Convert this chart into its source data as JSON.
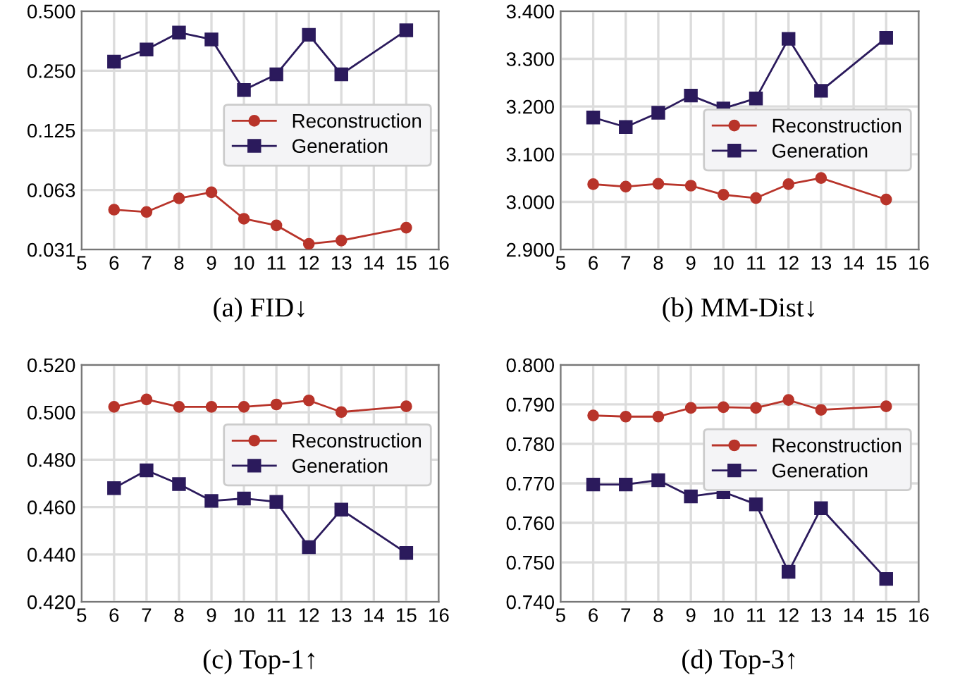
{
  "chart_data": [
    {
      "type": "line",
      "title": "(a) FID↓",
      "log": "y",
      "x": [
        6,
        7,
        8,
        9,
        10,
        11,
        12,
        13,
        15
      ],
      "series": [
        {
          "name": "Reconstruction",
          "color": "#b8342a",
          "marker": "circle",
          "values": [
            0.0497,
            0.0484,
            0.0567,
            0.0608,
            0.0447,
            0.0414,
            0.0334,
            0.0347,
            0.0403
          ]
        },
        {
          "name": "Generation",
          "color": "#2b1a5c",
          "marker": "square",
          "values": [
            0.278,
            0.32,
            0.39,
            0.36,
            0.2,
            0.24,
            0.38,
            0.24,
            0.4
          ]
        }
      ],
      "xlim": [
        5,
        16
      ],
      "xticks": [
        5,
        6,
        7,
        8,
        9,
        10,
        11,
        12,
        13,
        14,
        15,
        16
      ],
      "ylim": [
        0.03125,
        0.5
      ],
      "yticks": [
        {
          "value": 0.03125,
          "label": "0.031"
        },
        {
          "value": 0.0625,
          "label": "0.063"
        },
        {
          "value": 0.125,
          "label": "0.125"
        },
        {
          "value": 0.25,
          "label": "0.250"
        },
        {
          "value": 0.5,
          "label": "0.500"
        }
      ],
      "grid": true,
      "legend": "center right"
    },
    {
      "type": "line",
      "title": "(b) MM-Dist↓",
      "x": [
        6,
        7,
        8,
        9,
        10,
        11,
        12,
        13,
        15
      ],
      "series": [
        {
          "name": "Reconstruction",
          "color": "#b8342a",
          "marker": "circle",
          "values": [
            3.037,
            3.032,
            3.038,
            3.034,
            3.015,
            3.008,
            3.037,
            3.05,
            3.005
          ]
        },
        {
          "name": "Generation",
          "color": "#2b1a5c",
          "marker": "square",
          "values": [
            3.177,
            3.157,
            3.187,
            3.223,
            3.196,
            3.217,
            3.342,
            3.233,
            3.344
          ]
        }
      ],
      "xlim": [
        5,
        16
      ],
      "xticks": [
        5,
        6,
        7,
        8,
        9,
        10,
        11,
        12,
        13,
        14,
        15,
        16
      ],
      "ylim": [
        2.9,
        3.4
      ],
      "yticks": [
        {
          "value": 2.9,
          "label": "2.900"
        },
        {
          "value": 3.0,
          "label": "3.000"
        },
        {
          "value": 3.1,
          "label": "3.100"
        },
        {
          "value": 3.2,
          "label": "3.200"
        },
        {
          "value": 3.3,
          "label": "3.300"
        },
        {
          "value": 3.4,
          "label": "3.400"
        }
      ],
      "grid": true,
      "legend": "center right"
    },
    {
      "type": "line",
      "title": "(c) Top-1↑",
      "x": [
        6,
        7,
        8,
        9,
        10,
        11,
        12,
        13,
        15
      ],
      "series": [
        {
          "name": "Reconstruction",
          "color": "#b8342a",
          "marker": "circle",
          "values": [
            0.5023,
            0.5054,
            0.5023,
            0.5023,
            0.5023,
            0.5033,
            0.505,
            0.5001,
            0.5025
          ]
        },
        {
          "name": "Generation",
          "color": "#2b1a5c",
          "marker": "square",
          "values": [
            0.468,
            0.4755,
            0.4697,
            0.4626,
            0.4636,
            0.4622,
            0.4431,
            0.4589,
            0.4406
          ]
        }
      ],
      "xlim": [
        5,
        16
      ],
      "xticks": [
        5,
        6,
        7,
        8,
        9,
        10,
        11,
        12,
        13,
        14,
        15,
        16
      ],
      "ylim": [
        0.42,
        0.52
      ],
      "yticks": [
        {
          "value": 0.42,
          "label": "0.420"
        },
        {
          "value": 0.44,
          "label": "0.440"
        },
        {
          "value": 0.46,
          "label": "0.460"
        },
        {
          "value": 0.48,
          "label": "0.480"
        },
        {
          "value": 0.5,
          "label": "0.500"
        },
        {
          "value": 0.52,
          "label": "0.520"
        }
      ],
      "grid": true,
      "legend": "center right"
    },
    {
      "type": "line",
      "title": "(d) Top-3↑",
      "x": [
        6,
        7,
        8,
        9,
        10,
        11,
        12,
        13,
        15
      ],
      "series": [
        {
          "name": "Reconstruction",
          "color": "#b8342a",
          "marker": "circle",
          "values": [
            0.7872,
            0.7869,
            0.7869,
            0.7891,
            0.7893,
            0.7891,
            0.7911,
            0.7886,
            0.7895
          ]
        },
        {
          "name": "Generation",
          "color": "#2b1a5c",
          "marker": "square",
          "values": [
            0.7697,
            0.7697,
            0.7708,
            0.7667,
            0.7678,
            0.7647,
            0.7476,
            0.7637,
            0.7458
          ]
        }
      ],
      "xlim": [
        5,
        16
      ],
      "xticks": [
        5,
        6,
        7,
        8,
        9,
        10,
        11,
        12,
        13,
        14,
        15,
        16
      ],
      "ylim": [
        0.74,
        0.8
      ],
      "yticks": [
        {
          "value": 0.74,
          "label": "0.740"
        },
        {
          "value": 0.75,
          "label": "0.750"
        },
        {
          "value": 0.76,
          "label": "0.760"
        },
        {
          "value": 0.77,
          "label": "0.770"
        },
        {
          "value": 0.78,
          "label": "0.780"
        },
        {
          "value": 0.79,
          "label": "0.790"
        },
        {
          "value": 0.8,
          "label": "0.800"
        }
      ],
      "grid": true,
      "legend": "center right"
    }
  ]
}
